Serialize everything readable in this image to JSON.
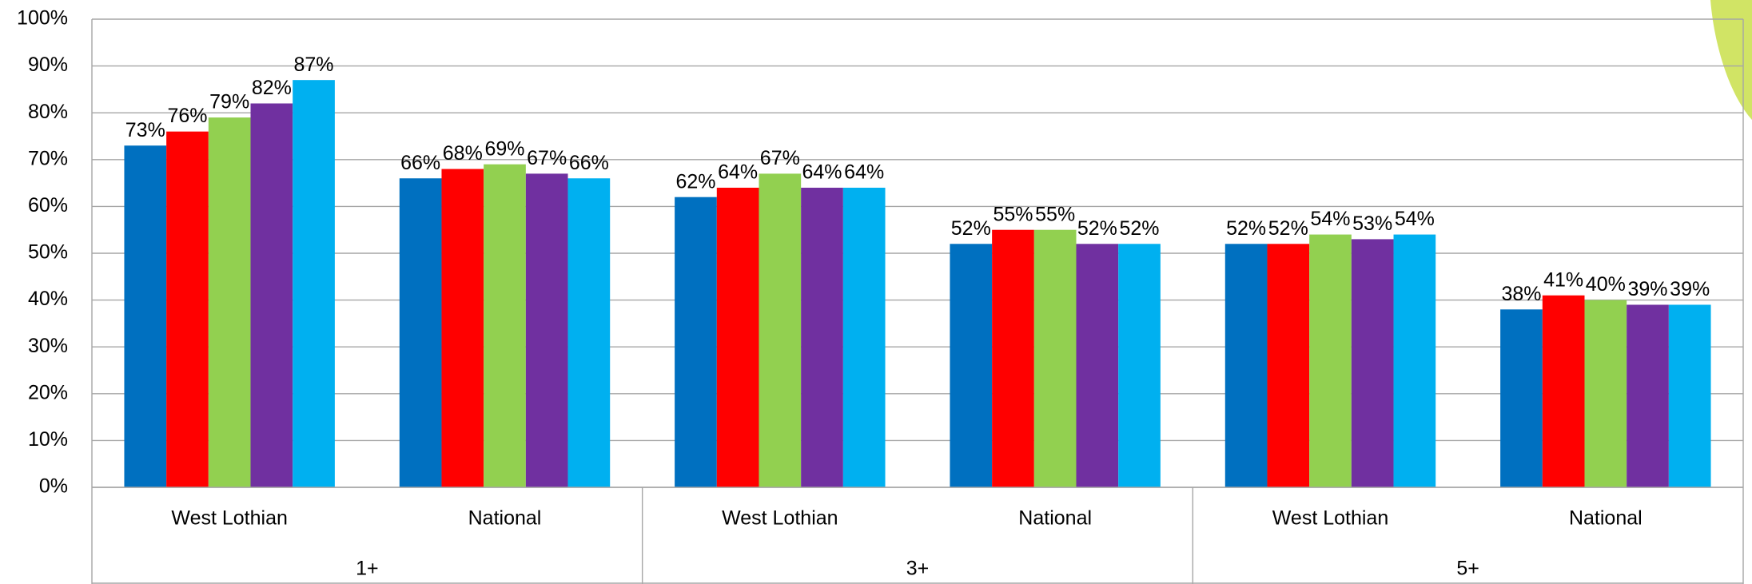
{
  "chart_data": {
    "type": "bar",
    "categories": [
      "West Lothian",
      "National",
      "West Lothian",
      "National",
      "West Lothian",
      "National"
    ],
    "groups": [
      "1+",
      "3+",
      "5+"
    ],
    "series": [
      {
        "color": "#0070c0",
        "values": [
          73,
          66,
          62,
          52,
          52,
          38
        ],
        "value_labels": [
          "73%",
          "66%",
          "62%",
          "52%",
          "52%",
          "38%"
        ]
      },
      {
        "color": "#ff0000",
        "values": [
          76,
          68,
          64,
          55,
          52,
          41
        ],
        "value_labels": [
          "76%",
          "68%",
          "64%",
          "55%",
          "52%",
          "41%"
        ]
      },
      {
        "color": "#92d050",
        "values": [
          79,
          69,
          67,
          55,
          54,
          40
        ],
        "value_labels": [
          "79%",
          "69%",
          "67%",
          "55%",
          "54%",
          "40%"
        ]
      },
      {
        "color": "#7030a0",
        "values": [
          82,
          67,
          64,
          52,
          53,
          39
        ],
        "value_labels": [
          "82%",
          "67%",
          "64%",
          "52%",
          "53%",
          "39%"
        ]
      },
      {
        "color": "#00b0f0",
        "values": [
          87,
          66,
          64,
          52,
          54,
          39
        ],
        "value_labels": [
          "87%",
          "66%",
          "64%",
          "52%",
          "54%",
          "39%"
        ]
      }
    ],
    "ylim": [
      0,
      100
    ],
    "yticks": [
      {
        "value": 0,
        "label": "0%"
      },
      {
        "value": 10,
        "label": "10%"
      },
      {
        "value": 20,
        "label": "20%"
      },
      {
        "value": 30,
        "label": "30%"
      },
      {
        "value": 40,
        "label": "40%"
      },
      {
        "value": 50,
        "label": "50%"
      },
      {
        "value": 60,
        "label": "60%"
      },
      {
        "value": 70,
        "label": "70%"
      },
      {
        "value": 80,
        "label": "80%"
      },
      {
        "value": 90,
        "label": "90%"
      },
      {
        "value": 100,
        "label": "100%"
      }
    ],
    "grid": true
  }
}
